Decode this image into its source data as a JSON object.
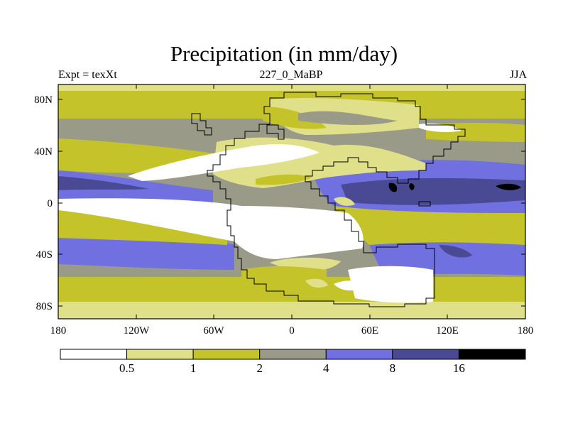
{
  "title": "Precipitation (in mm/day)",
  "left_label": "Expt = texXt",
  "center_label": "227_0_MaBP",
  "right_label": "JJA",
  "chart_data": {
    "type": "heatmap",
    "title": "Precipitation (in mm/day)",
    "experiment": "Expt = texXt",
    "time_slice": "227_0_MaBP",
    "season": "JJA",
    "x_ticks": [
      "180",
      "120W",
      "60W",
      "0",
      "60E",
      "120E",
      "180"
    ],
    "y_ticks": [
      "80N",
      "40N",
      "0",
      "40S",
      "80S"
    ],
    "xlim": [
      -180,
      180
    ],
    "ylim": [
      -90,
      90
    ],
    "colorbar": {
      "levels": [
        0.5,
        1,
        2,
        4,
        8,
        16
      ],
      "labels": [
        "0.5",
        "1",
        "2",
        "4",
        "8",
        "16"
      ],
      "colors": [
        "#ffffff",
        "#e0e08a",
        "#c4c42a",
        "#9a9a88",
        "#7070e0",
        "#4a4a94",
        "#000000"
      ]
    }
  }
}
